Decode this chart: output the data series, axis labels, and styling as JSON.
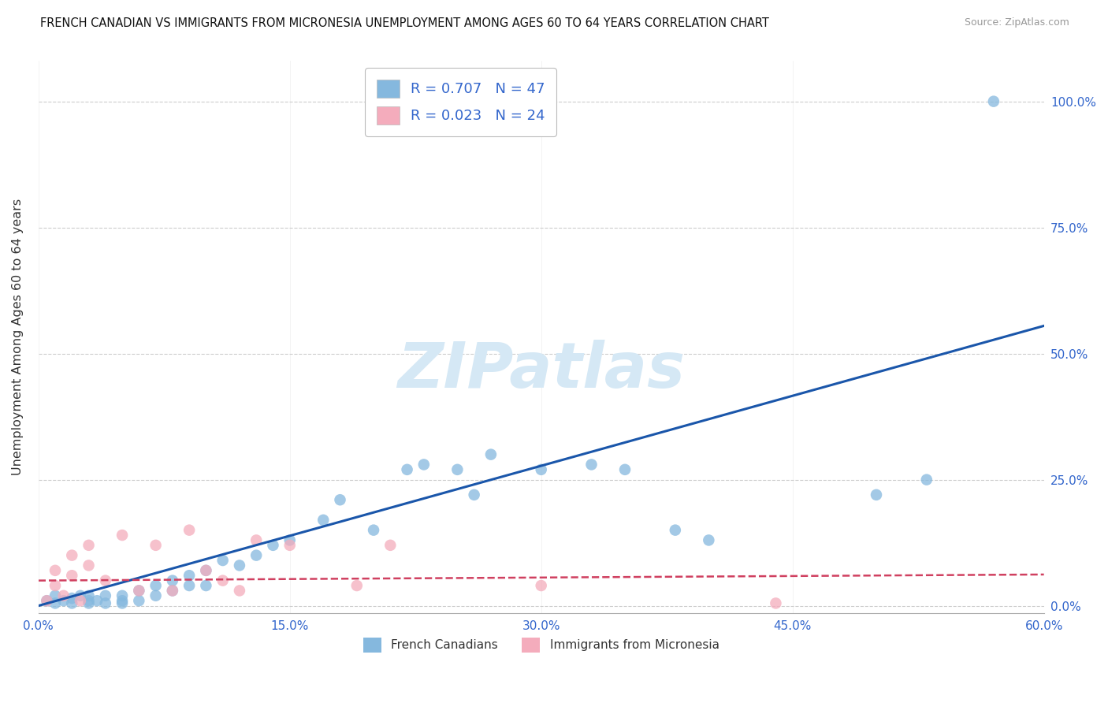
{
  "title": "FRENCH CANADIAN VS IMMIGRANTS FROM MICRONESIA UNEMPLOYMENT AMONG AGES 60 TO 64 YEARS CORRELATION CHART",
  "source": "Source: ZipAtlas.com",
  "ylabel": "Unemployment Among Ages 60 to 64 years",
  "xlim": [
    0.0,
    0.6
  ],
  "ylim": [
    -0.015,
    1.08
  ],
  "xticks": [
    0.0,
    0.15,
    0.3,
    0.45,
    0.6
  ],
  "xtick_labels": [
    "0.0%",
    "15.0%",
    "30.0%",
    "45.0%",
    "60.0%"
  ],
  "ytick_positions": [
    0.0,
    0.25,
    0.5,
    0.75,
    1.0
  ],
  "ytick_labels": [
    "0.0%",
    "25.0%",
    "50.0%",
    "75.0%",
    "100.0%"
  ],
  "legend_label_blue": "French Canadians",
  "legend_label_pink": "Immigrants from Micronesia",
  "R_blue": "0.707",
  "N_blue": "47",
  "R_pink": "0.023",
  "N_pink": "24",
  "blue_color": "#85B8DE",
  "pink_color": "#F4ACBC",
  "blue_line_color": "#1A56AA",
  "pink_line_color": "#D04060",
  "watermark_text": "ZIPatlas",
  "watermark_color": "#D5E8F5",
  "background_color": "#ffffff",
  "grid_color": "#CCCCCC",
  "blue_scatter_x": [
    0.005,
    0.01,
    0.01,
    0.015,
    0.02,
    0.02,
    0.025,
    0.03,
    0.03,
    0.03,
    0.035,
    0.04,
    0.04,
    0.05,
    0.05,
    0.05,
    0.06,
    0.06,
    0.07,
    0.07,
    0.08,
    0.08,
    0.09,
    0.09,
    0.1,
    0.1,
    0.11,
    0.12,
    0.13,
    0.14,
    0.15,
    0.17,
    0.18,
    0.2,
    0.22,
    0.23,
    0.25,
    0.26,
    0.27,
    0.3,
    0.33,
    0.35,
    0.38,
    0.4,
    0.5,
    0.53,
    0.57
  ],
  "blue_scatter_y": [
    0.01,
    0.005,
    0.02,
    0.01,
    0.005,
    0.015,
    0.02,
    0.005,
    0.01,
    0.02,
    0.01,
    0.005,
    0.02,
    0.005,
    0.01,
    0.02,
    0.01,
    0.03,
    0.02,
    0.04,
    0.03,
    0.05,
    0.04,
    0.06,
    0.04,
    0.07,
    0.09,
    0.08,
    0.1,
    0.12,
    0.13,
    0.17,
    0.21,
    0.15,
    0.27,
    0.28,
    0.27,
    0.22,
    0.3,
    0.27,
    0.28,
    0.27,
    0.15,
    0.13,
    0.22,
    0.25,
    1.0
  ],
  "pink_scatter_x": [
    0.005,
    0.01,
    0.01,
    0.015,
    0.02,
    0.02,
    0.025,
    0.03,
    0.03,
    0.04,
    0.05,
    0.06,
    0.07,
    0.08,
    0.09,
    0.1,
    0.11,
    0.12,
    0.13,
    0.15,
    0.19,
    0.21,
    0.3,
    0.44
  ],
  "pink_scatter_y": [
    0.01,
    0.04,
    0.07,
    0.02,
    0.06,
    0.1,
    0.01,
    0.08,
    0.12,
    0.05,
    0.14,
    0.03,
    0.12,
    0.03,
    0.15,
    0.07,
    0.05,
    0.03,
    0.13,
    0.12,
    0.04,
    0.12,
    0.04,
    0.005
  ],
  "blue_line_x0": 0.0,
  "blue_line_x1": 0.6,
  "blue_line_y0": 0.0,
  "blue_line_y1": 0.555,
  "pink_line_x0": 0.0,
  "pink_line_x1": 0.6,
  "pink_line_y0": 0.05,
  "pink_line_y1": 0.062
}
